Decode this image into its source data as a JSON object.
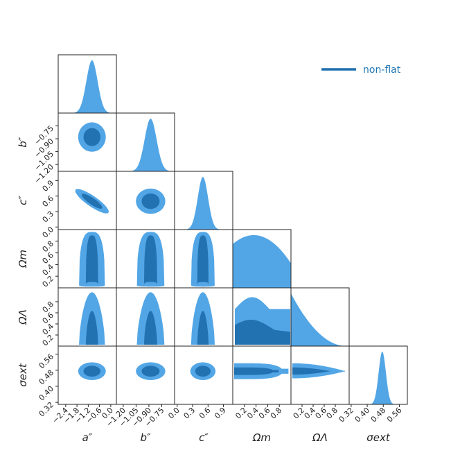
{
  "colors": {
    "outer": "#52a6e6",
    "inner": "#2272b2",
    "legend_line": "#1f6fad",
    "legend_text": "#1f77b4",
    "frame": "#222222"
  },
  "legend": {
    "label": "non-flat",
    "placement": "top-right"
  },
  "chart_data": {
    "type": "corner",
    "series": [
      {
        "name": "non-flat"
      }
    ],
    "parameters": [
      {
        "key": "a",
        "label": "a″",
        "range": [
          -2.8,
          0.3
        ],
        "ticks": [
          "−2.4",
          "−1.8",
          "−1.2",
          "−0.6",
          "0.0"
        ],
        "tick_values": [
          -2.4,
          -1.8,
          -1.2,
          -0.6,
          0.0
        ],
        "mean": -1.0,
        "sd": 0.3
      },
      {
        "key": "b",
        "label": "b″",
        "range": [
          -1.28,
          -0.6
        ],
        "ticks": [
          "−1.20",
          "−1.05",
          "−0.90",
          "−0.75"
        ],
        "tick_values": [
          -1.2,
          -1.05,
          -0.9,
          -0.75
        ],
        "mean": -0.88,
        "sd": 0.07
      },
      {
        "key": "c",
        "label": "c″",
        "range": [
          -0.05,
          1.08
        ],
        "ticks": [
          "0.0",
          "0.3",
          "0.6",
          "0.9"
        ],
        "tick_values": [
          0.0,
          0.3,
          0.6,
          0.9
        ],
        "mean": 0.5,
        "sd": 0.1
      },
      {
        "key": "om",
        "label": "Ωm",
        "range": [
          0.0,
          1.0
        ],
        "ticks": [
          "0.2",
          "0.4",
          "0.6",
          "0.8"
        ],
        "tick_values": [
          0.2,
          0.4,
          0.6,
          0.8
        ]
      },
      {
        "key": "ol",
        "label": "ΩΛ",
        "range": [
          0.0,
          1.05
        ],
        "ticks": [
          "0.2",
          "0.4",
          "0.6",
          "0.8"
        ],
        "tick_values": [
          0.2,
          0.4,
          0.6,
          0.8
        ]
      },
      {
        "key": "se",
        "label": "σext",
        "range": [
          0.31,
          0.6
        ],
        "ticks": [
          "0.32",
          "0.40",
          "0.48",
          "0.56"
        ],
        "tick_values": [
          0.32,
          0.4,
          0.48,
          0.56
        ],
        "mean": 0.475,
        "sd": 0.018
      }
    ],
    "y_tick_labels": {
      "b": [
        "−1.20",
        "−1.05",
        "−0.90",
        "−0.75"
      ],
      "c": [
        "0.0",
        "0.3",
        "0.6",
        "0.9"
      ],
      "om": [
        "0.2",
        "0.4",
        "0.6",
        "0.8"
      ],
      "ol": [
        "0.2",
        "0.4",
        "0.6",
        "0.8"
      ],
      "se": [
        "0.32",
        "0.40",
        "0.48",
        "0.56"
      ]
    },
    "correlations": {
      "a-c": -0.8
    }
  }
}
